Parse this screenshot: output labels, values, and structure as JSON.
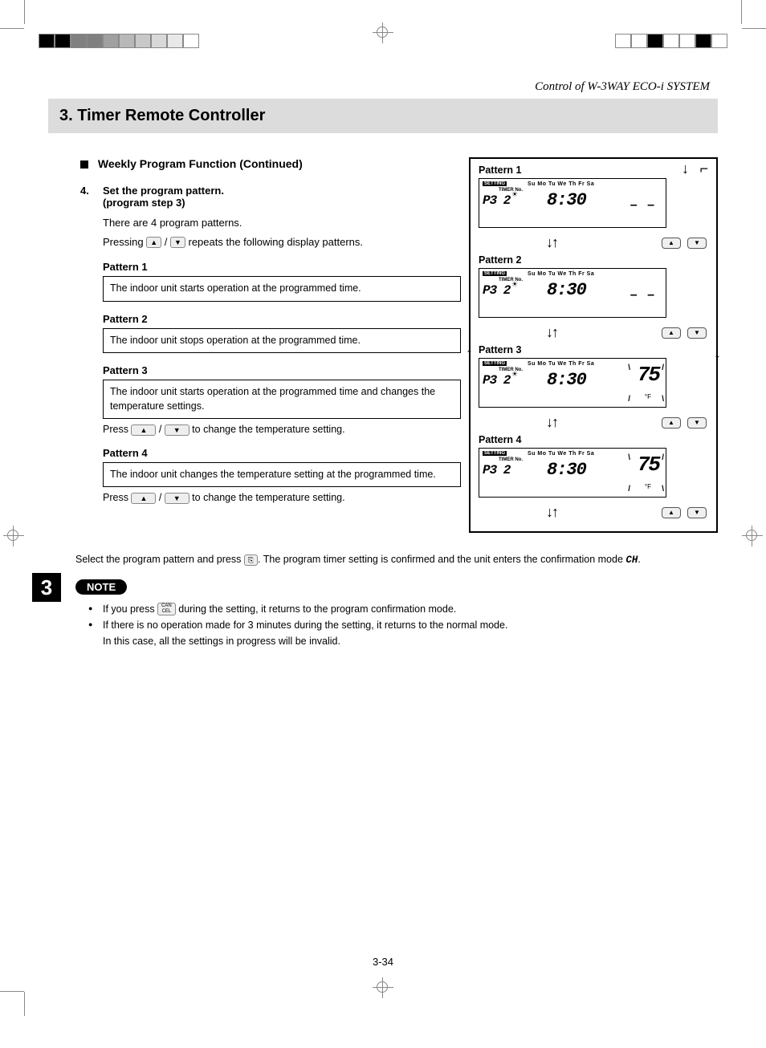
{
  "header": {
    "context": "Control of W-3WAY ECO-i SYSTEM",
    "section_title": "3. Timer Remote Controller"
  },
  "subsection": {
    "heading": "Weekly Program Function (Continued)"
  },
  "step": {
    "number": "4.",
    "title_l1": "Set the program pattern.",
    "title_l2": "(program step 3)",
    "body_l1": "There are 4 program patterns.",
    "body_l2a": "Pressing ",
    "body_l2b": " / ",
    "body_l2c": " repeats the following display patterns."
  },
  "patterns": [
    {
      "title": "Pattern 1",
      "desc": "The indoor unit starts operation at the programmed time."
    },
    {
      "title": "Pattern 2",
      "desc": "The indoor unit stops operation at the programmed time."
    },
    {
      "title": "Pattern 3",
      "desc": "The indoor unit starts operation at the programmed time and changes the temperature settings."
    },
    {
      "title": "Pattern 4",
      "desc": "The indoor unit changes the temperature setting at the programmed time."
    }
  ],
  "press_line": {
    "a": "Press ",
    "mid": " / ",
    "b": " to change the temperature setting."
  },
  "lcd": {
    "setting": "SETTING",
    "timer_no": "TIMER No.",
    "days": "Su Mo Tu We Th Fr Sa",
    "p3": "P3  2",
    "time": "8:30",
    "dashes": "– –",
    "temp": "75",
    "f_unit": "°F"
  },
  "select_line": {
    "a": "Select the program pattern and press ",
    "b": ". The program timer setting is confirmed and the unit enters the confirmation mode ",
    "c": "."
  },
  "chapter_tab": "3",
  "note": {
    "badge": "NOTE",
    "items": [
      {
        "a": "If you press ",
        "b": " during the setting, it returns to the program confirmation mode."
      },
      {
        "a": "If there is no operation made for 3 minutes during the setting, it returns to the normal mode.",
        "b": "In this case, all the settings in progress will be invalid."
      }
    ]
  },
  "page_number": "3-34",
  "icons": {
    "up": "▲",
    "down": "▼",
    "set": "⎘",
    "cancel": "CAN\nCEL",
    "ch": "CH"
  },
  "colors": {
    "bar_bg": "#dcdcdc",
    "text": "#000000",
    "border": "#000000"
  },
  "colorbar_left": [
    "#000000",
    "#000000",
    "#808080",
    "#808080",
    "#a0a0a0",
    "#b8b8b8",
    "#c8c8c8",
    "#d8d8d8",
    "#e8e8e8",
    "#ffffff"
  ],
  "colorbar_right": [
    "#ffffff",
    "#ffffff",
    "#000000",
    "#ffffff",
    "#ffffff",
    "#000000",
    "#ffffff"
  ]
}
